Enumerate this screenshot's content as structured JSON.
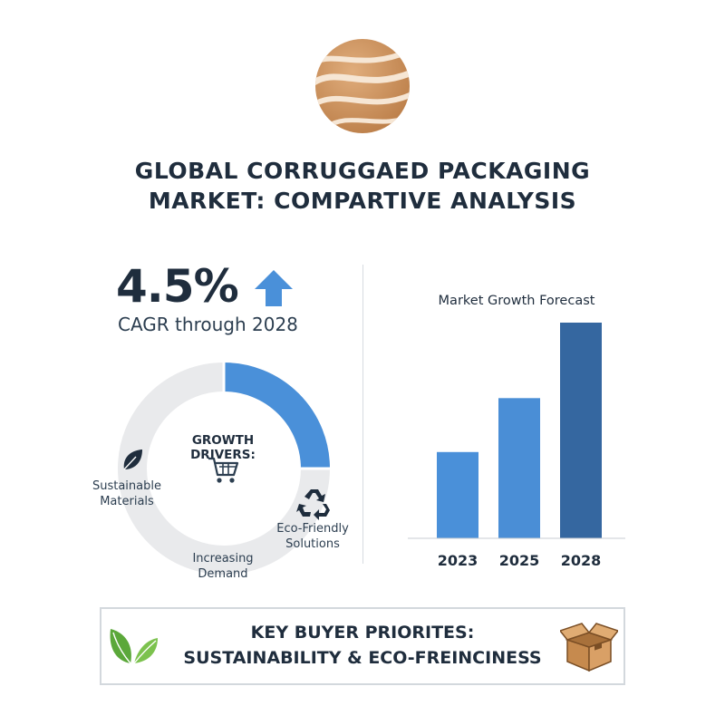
{
  "title_line1": "GLOBAL CORRUGGAED PACKAGING",
  "title_line2": "MARKET: COMPARTIVE ANALYSIS",
  "cagr": {
    "value": "4.5%",
    "label": "CAGR through 2028",
    "arrow_icon": "arrow-up-icon"
  },
  "growth_drivers": {
    "title": "GROWTH DRIVERS:",
    "center_icon": "shopping-cart-icon",
    "segments": [
      {
        "label_line1": "Sustainable",
        "label_line2": "Materials",
        "icon": "leaf-icon"
      },
      {
        "label_line1": "Eco-Friendly",
        "label_line2": "Solutions",
        "icon": "recycle-icon"
      },
      {
        "label_line1": "Increasing",
        "label_line2": "Demand",
        "icon": ""
      }
    ],
    "highlight_color": "#4a90d9",
    "base_color": "#e9eaec"
  },
  "banner": {
    "line1": "KEY BUYER PRIORITES:",
    "line2": "SUSTAINABILITY & ECO-FREINCINESS",
    "left_icon": "green-leaves-icon",
    "right_icon": "cardboard-box-icon"
  },
  "colors": {
    "text": "#1f2d3d",
    "accent_blue": "#4a90d9",
    "dark_blue": "#3567a0",
    "logo_tan": "#c9915f"
  },
  "chart_data": {
    "type": "bar",
    "title": "Market Growth Forecast",
    "categories": [
      "2023",
      "2025",
      "2028"
    ],
    "values": [
      40,
      65,
      100
    ],
    "ylim": [
      0,
      100
    ],
    "grid": false,
    "colors": [
      "#4a90d9",
      "#4a8ed6",
      "#3567a0"
    ]
  }
}
